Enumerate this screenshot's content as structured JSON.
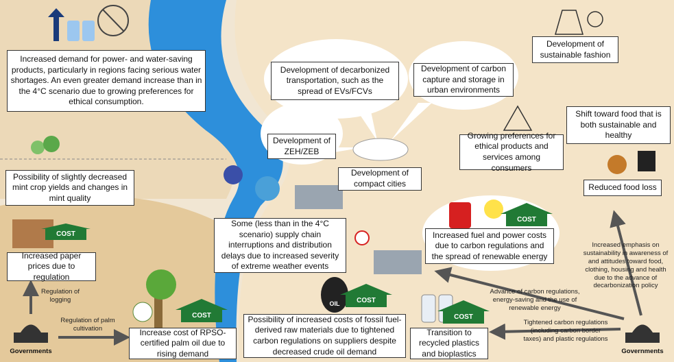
{
  "boxes": [
    "Increased demand for power- and water-saving products, particularly in regions facing serious water shortages. An even greater demand increase than in the 4°C scenario due to growing preferences for ethical consumption.",
    "Possibility of slightly decreased mint crop yields and changes in mint quality",
    "Increased paper prices due to regulation",
    "Increase cost of RPSO-certified palm oil due to rising demand",
    "Possibility of increased costs of fossil fuel-derived raw materials due to tightened carbon regulations on suppliers despite decreased crude oil demand",
    "Transition to recycled plastics and bioplastics",
    "Some (less than in the 4°C scenario) supply chain interruptions and distribution delays due to increased severity of extreme weather events",
    "Increased fuel and power costs due to carbon regulations and the spread of renewable energy",
    "Development of decarbonized transportation, such as the spread of EVs/FCVs",
    "Development of carbon capture and storage in urban environments",
    "Development of ZEH/ZEB",
    "Development of compact cities",
    "Growing preferences for ethical products and services among consumers",
    "Development of sustainable fashion",
    "Shift toward food that is both sustainable and healthy",
    "Reduced food loss"
  ],
  "arrow_labels": [
    "Regulation of logging",
    "Regulation of palm cultivation",
    "Advance of carbon regulations, energy-saving and the use of renewable energy",
    "Tightened carbon regulations (including carbon border taxes) and plastic regulations",
    "Increased emphasis on sustainability in awareness of and attitudes toward food, clothing, housing and health due to the advance of decarbonization policy"
  ],
  "governments": [
    "Governments",
    "Governments"
  ],
  "cost_tags": [
    "COST",
    "COST",
    "COST",
    "COST",
    "COST"
  ],
  "oil_label": "OIL"
}
